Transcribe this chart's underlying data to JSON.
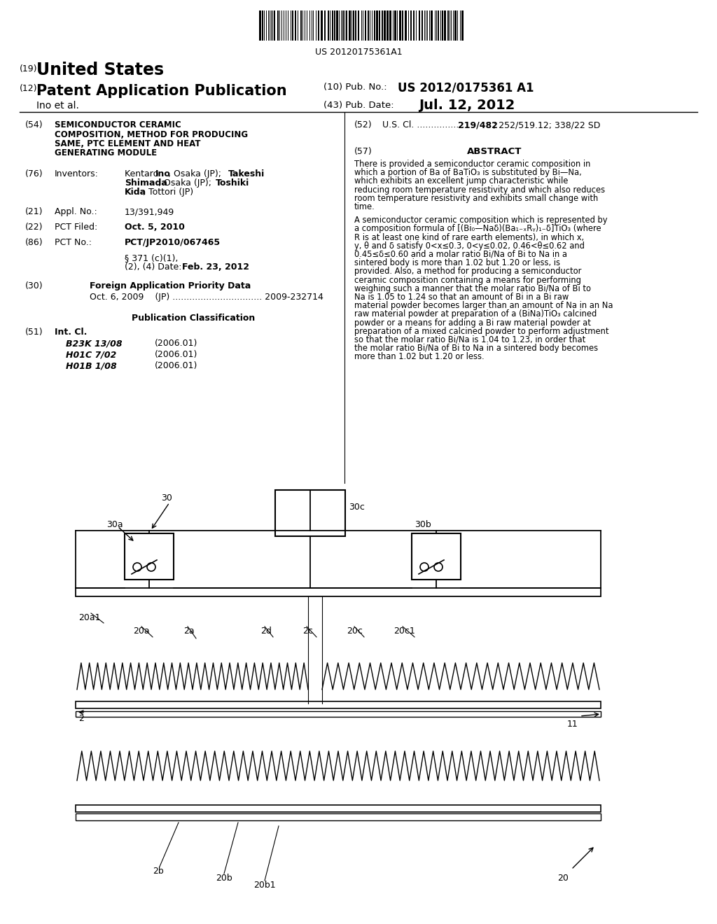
{
  "background_color": "#ffffff",
  "barcode_text": "US 20120175361A1",
  "patent_number_label": "(19)",
  "patent_title_us": "United States",
  "patent_number_label2": "(12)",
  "patent_app_pub": "Patent Application Publication",
  "pub_no_label": "(10) Pub. No.:",
  "pub_no_value": "US 2012/0175361 A1",
  "inventor_label": "Ino et al.",
  "pub_date_label": "(43) Pub. Date:",
  "pub_date_value": "Jul. 12, 2012",
  "title_text": "SEMICONDUCTOR CERAMIC\nCOMPOSITION, METHOD FOR PRODUCING\nSAME, PTC ELEMENT AND HEAT\nGENERATING MODULE",
  "us_cl_value": "219/482; 252/519.12; 338/22 SD",
  "abstract_title": "ABSTRACT",
  "abstract_para1": "There is provided a semiconductor ceramic composition in which a portion of Ba of BaTiO₃ is substituted by Bi—Na, which exhibits an excellent jump characteristic while reducing room temperature resistivity and which also reduces room temperature resistivity and exhibits small change with time.",
  "abstract_para2": "A semiconductor ceramic composition which is represented by a composition formula of [(Bi₀—Naδ)(Ba₁₋ₓRᵧ)₁₋δ]TiO₃ (where R is at least one kind of rare earth elements), in which x, y, θ and δ satisfy 0<x≤0.3, 0<y≤0.02, 0.46<θ≤0.62 and 0.45≤δ≤0.60 and a molar ratio Bi/Na of Bi to Na in a sintered body is more than 1.02 but 1.20 or less, is provided. Also, a method for producing a semiconductor ceramic composition containing a means for performing weighing such a manner that the molar ratio Bi/Na of Bi to Na is 1.05 to 1.24 so that an amount of Bi in a Bi raw material powder becomes larger than an amount of Na in an Na raw material powder at preparation of a (BiNa)TiO₃ calcined powder or a means for adding a Bi raw material powder at preparation of a mixed calcined powder to perform adjustment so that the molar ratio Bi/Na is 1.04 to 1.23, in order that the molar ratio Bi/Na of Bi to Na in a sintered body becomes more than 1.02 but 1.20 or less.",
  "inventors_value": "Kentaro Ino, Osaka (JP); Takeshi Shimada, Osaka (JP); Toshiki Kida, Tottori (JP)",
  "appl_no_value": "13/391,949",
  "pct_filed_value": "Oct. 5, 2010",
  "pct_no_value": "PCT/JP2010/067465",
  "s371_value": "Feb. 23, 2012",
  "foreign_data": "Oct. 6, 2009    (JP) ................................ 2009-232714",
  "pub_class_label": "Publication Classification",
  "int_cl_items": [
    [
      "B23K 13/08",
      "(2006.01)"
    ],
    [
      "H01C 7/02",
      "(2006.01)"
    ],
    [
      "H01B 1/08",
      "(2006.01)"
    ]
  ]
}
